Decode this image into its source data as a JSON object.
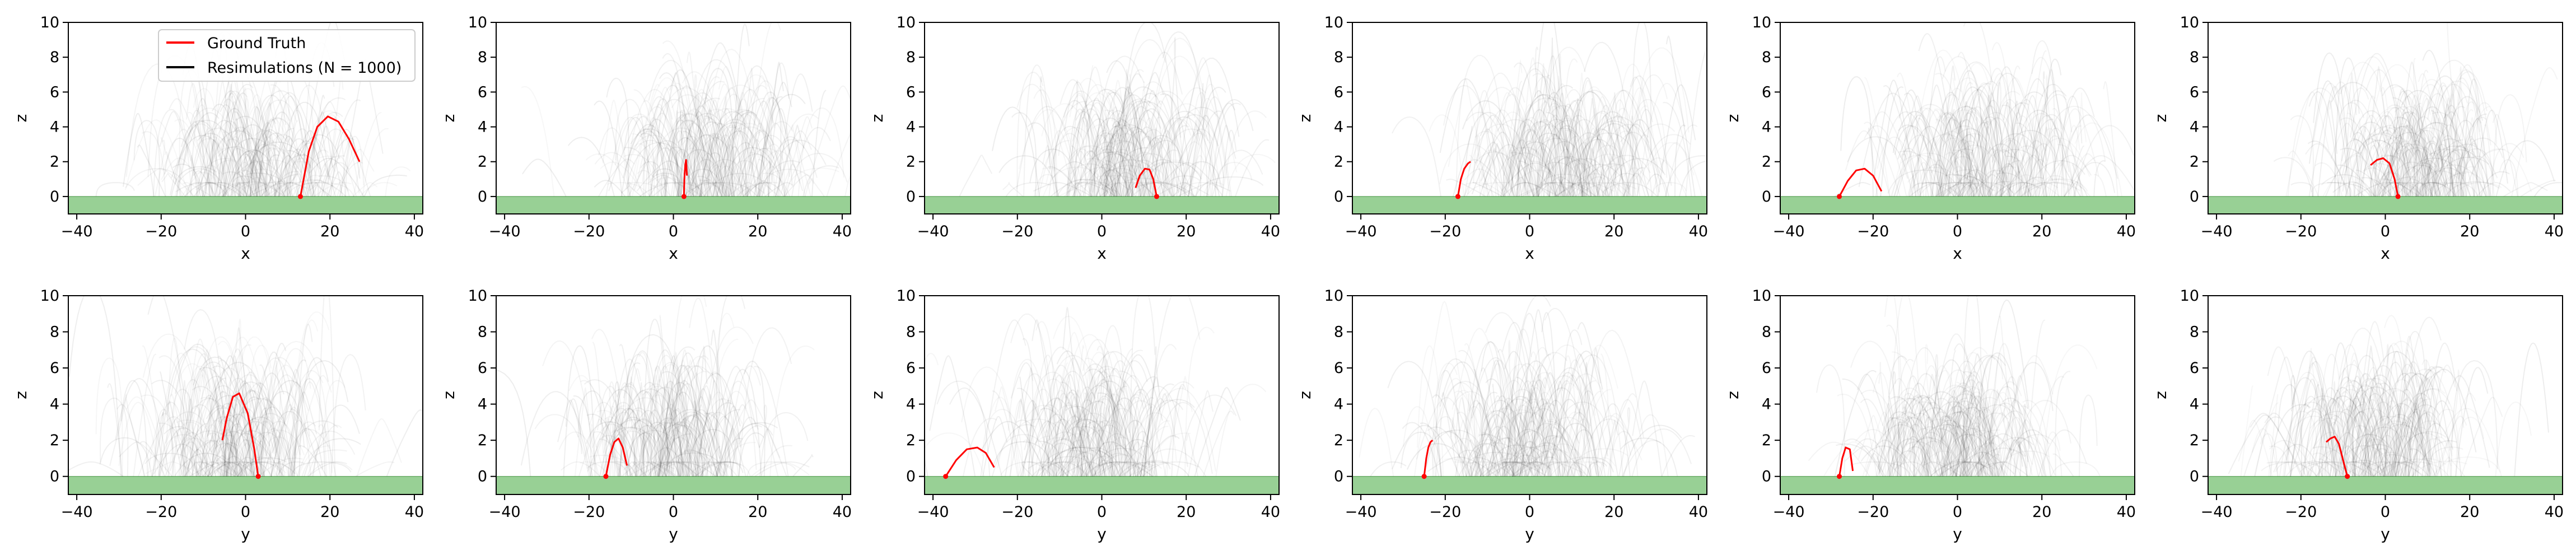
{
  "colors": {
    "ground_truth": "#ff0000",
    "resimulation": "#000000",
    "ground": "#98d095",
    "ground_edge": "#6fae6c",
    "axis": "#000000"
  },
  "legend": {
    "placement": "top-right of first panel",
    "entries": [
      {
        "label": "Ground Truth",
        "color": "#ff0000"
      },
      {
        "label": "Resimulations (N = 1000)",
        "color": "#000000"
      }
    ]
  },
  "chart_data": [
    {
      "type": "line",
      "xlabel": "x",
      "ylabel": "z",
      "xlim": [
        -42,
        42
      ],
      "ylim": [
        -1,
        10
      ],
      "xticks": [
        "−40",
        "−20",
        "0",
        "20",
        "40"
      ],
      "yticks": [
        "0",
        "2",
        "4",
        "6",
        "8",
        "10"
      ],
      "resim_center": 2,
      "resim_spread": 15,
      "ground_truth": {
        "x": [
          13,
          15,
          17,
          19.5,
          22,
          24.5,
          27
        ],
        "z": [
          0,
          2.6,
          4.0,
          4.6,
          4.3,
          3.3,
          2.0
        ]
      }
    },
    {
      "type": "line",
      "xlabel": "x",
      "ylabel": "z",
      "xlim": [
        -42,
        42
      ],
      "ylim": [
        -1,
        10
      ],
      "xticks": [
        "−40",
        "−20",
        "0",
        "20",
        "40"
      ],
      "yticks": [
        "0",
        "2",
        "4",
        "6",
        "8",
        "10"
      ],
      "resim_center": 9,
      "resim_spread": 15,
      "ground_truth": {
        "x": [
          2.5,
          2.6,
          2.8,
          3.0,
          3.2
        ],
        "z": [
          0,
          1.0,
          1.8,
          2.1,
          1.2
        ]
      }
    },
    {
      "type": "line",
      "xlabel": "x",
      "ylabel": "z",
      "xlim": [
        -42,
        42
      ],
      "ylim": [
        -1,
        10
      ],
      "xticks": [
        "−40",
        "−20",
        "0",
        "20",
        "40"
      ],
      "yticks": [
        "0",
        "2",
        "4",
        "6",
        "8",
        "10"
      ],
      "resim_center": 6,
      "resim_spread": 15,
      "ground_truth": {
        "x": [
          13,
          12.2,
          11.3,
          10.2,
          9.0,
          8.0
        ],
        "z": [
          0,
          1.0,
          1.55,
          1.6,
          1.2,
          0.5
        ]
      }
    },
    {
      "type": "line",
      "xlabel": "x",
      "ylabel": "z",
      "xlim": [
        -42,
        42
      ],
      "ylim": [
        -1,
        10
      ],
      "xticks": [
        "−40",
        "−20",
        "0",
        "20",
        "40"
      ],
      "yticks": [
        "0",
        "2",
        "4",
        "6",
        "8",
        "10"
      ],
      "resim_center": 8,
      "resim_spread": 16,
      "ground_truth": {
        "x": [
          -17,
          -16.3,
          -15.5,
          -14.6,
          -14
        ],
        "z": [
          0,
          1.0,
          1.6,
          1.9,
          2.0
        ]
      }
    },
    {
      "type": "line",
      "xlabel": "x",
      "ylabel": "z",
      "xlim": [
        -42,
        42
      ],
      "ylim": [
        -1,
        10
      ],
      "xticks": [
        "−40",
        "−20",
        "0",
        "20",
        "40"
      ],
      "yticks": [
        "0",
        "2",
        "4",
        "6",
        "8",
        "10"
      ],
      "resim_center": 6,
      "resim_spread": 15,
      "ground_truth": {
        "x": [
          -28,
          -26,
          -24,
          -22,
          -20,
          -18
        ],
        "z": [
          0,
          0.9,
          1.5,
          1.6,
          1.2,
          0.3
        ]
      }
    },
    {
      "type": "line",
      "xlabel": "x",
      "ylabel": "z",
      "xlim": [
        -42,
        42
      ],
      "ylim": [
        -1,
        10
      ],
      "xticks": [
        "−40",
        "−20",
        "0",
        "20",
        "40"
      ],
      "yticks": [
        "0",
        "2",
        "4",
        "6",
        "8",
        "10"
      ],
      "resim_center": 7,
      "resim_spread": 15,
      "ground_truth": {
        "x": [
          3,
          2.2,
          1.0,
          -0.5,
          -2.0,
          -3.5
        ],
        "z": [
          0,
          1.0,
          1.9,
          2.2,
          2.1,
          1.8
        ]
      }
    },
    {
      "type": "line",
      "xlabel": "y",
      "ylabel": "z",
      "xlim": [
        -42,
        42
      ],
      "ylim": [
        -1,
        10
      ],
      "xticks": [
        "−40",
        "−20",
        "0",
        "20",
        "40"
      ],
      "yticks": [
        "0",
        "2",
        "4",
        "6",
        "8",
        "10"
      ],
      "resim_center": -3,
      "resim_spread": 15,
      "ground_truth": {
        "x": [
          3,
          2,
          0.5,
          -1.5,
          -3,
          -4.5,
          -5.5
        ],
        "z": [
          0,
          1.6,
          3.5,
          4.6,
          4.4,
          3.2,
          2.0
        ]
      }
    },
    {
      "type": "line",
      "xlabel": "y",
      "ylabel": "z",
      "xlim": [
        -42,
        42
      ],
      "ylim": [
        -1,
        10
      ],
      "xticks": [
        "−40",
        "−20",
        "0",
        "20",
        "40"
      ],
      "yticks": [
        "0",
        "2",
        "4",
        "6",
        "8",
        "10"
      ],
      "resim_center": 0,
      "resim_spread": 15,
      "ground_truth": {
        "x": [
          -16,
          -15,
          -14,
          -13,
          -12,
          -11
        ],
        "z": [
          0,
          1.2,
          1.9,
          2.1,
          1.6,
          0.6
        ]
      }
    },
    {
      "type": "line",
      "xlabel": "y",
      "ylabel": "z",
      "xlim": [
        -42,
        42
      ],
      "ylim": [
        -1,
        10
      ],
      "xticks": [
        "−40",
        "−20",
        "0",
        "20",
        "40"
      ],
      "yticks": [
        "0",
        "2",
        "4",
        "6",
        "8",
        "10"
      ],
      "resim_center": -2,
      "resim_spread": 15,
      "ground_truth": {
        "x": [
          -37,
          -34.5,
          -32,
          -29.5,
          -27.5,
          -25.5
        ],
        "z": [
          0,
          0.9,
          1.5,
          1.6,
          1.3,
          0.5
        ]
      }
    },
    {
      "type": "line",
      "xlabel": "y",
      "ylabel": "z",
      "xlim": [
        -42,
        42
      ],
      "ylim": [
        -1,
        10
      ],
      "xticks": [
        "−40",
        "−20",
        "0",
        "20",
        "40"
      ],
      "yticks": [
        "0",
        "2",
        "4",
        "6",
        "8",
        "10"
      ],
      "resim_center": -1,
      "resim_spread": 15,
      "ground_truth": {
        "x": [
          -25,
          -24.5,
          -24,
          -23.5,
          -23
        ],
        "z": [
          0,
          1.0,
          1.6,
          1.9,
          2.0
        ]
      }
    },
    {
      "type": "line",
      "xlabel": "y",
      "ylabel": "z",
      "xlim": [
        -42,
        42
      ],
      "ylim": [
        -1,
        10
      ],
      "xticks": [
        "−40",
        "−20",
        "0",
        "20",
        "40"
      ],
      "yticks": [
        "0",
        "2",
        "4",
        "6",
        "8",
        "10"
      ],
      "resim_center": -1,
      "resim_spread": 15,
      "ground_truth": {
        "x": [
          -28,
          -27.3,
          -26.5,
          -25.5,
          -24.8
        ],
        "z": [
          0,
          1.0,
          1.6,
          1.5,
          0.3
        ]
      }
    },
    {
      "type": "line",
      "xlabel": "y",
      "ylabel": "z",
      "xlim": [
        -42,
        42
      ],
      "ylim": [
        -1,
        10
      ],
      "xticks": [
        "−40",
        "−20",
        "0",
        "20",
        "40"
      ],
      "yticks": [
        "0",
        "2",
        "4",
        "6",
        "8",
        "10"
      ],
      "resim_center": -2,
      "resim_spread": 15,
      "ground_truth": {
        "x": [
          -9,
          -10,
          -11,
          -12,
          -13,
          -14
        ],
        "z": [
          0,
          0.9,
          1.8,
          2.2,
          2.1,
          1.9
        ]
      }
    }
  ]
}
